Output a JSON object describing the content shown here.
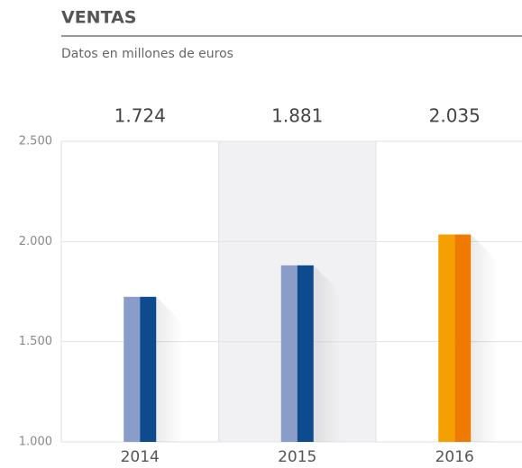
{
  "chart_data": {
    "type": "bar",
    "title": "VENTAS",
    "subtitle": "Datos en millones de euros",
    "categories": [
      "2014",
      "2015",
      "2016"
    ],
    "values": [
      1724,
      1881,
      2035
    ],
    "value_labels": [
      "1.724",
      "1.881",
      "2.035"
    ],
    "colors": [
      [
        "#8a9cc8",
        "#0d4a8e"
      ],
      [
        "#8a9cc8",
        "#0d4a8e"
      ],
      [
        "#f5a000",
        "#ee7a00"
      ]
    ],
    "ylim": [
      1000,
      2500
    ],
    "yticks": [
      {
        "value": 1000,
        "label": "1.000"
      },
      {
        "value": 1500,
        "label": "1.500"
      },
      {
        "value": 2000,
        "label": "2.000"
      },
      {
        "value": 2500,
        "label": "2.500"
      }
    ],
    "grid": true
  }
}
